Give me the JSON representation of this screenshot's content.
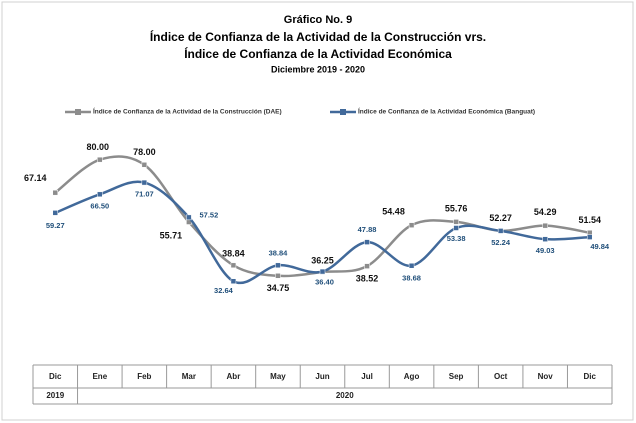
{
  "chart_data": {
    "type": "line",
    "title": [
      "Gráfico No. 9",
      "Índice de Confianza de la Actividad de la Construcción vrs.",
      "Índice de Confianza de la Actividad Económica"
    ],
    "subtitle": "Diciembre 2019 - 2020",
    "categories": [
      "Dic",
      "Ene",
      "Feb",
      "Mar",
      "Abr",
      "May",
      "Jun",
      "Jul",
      "Ago",
      "Sep",
      "Oct",
      "Nov",
      "Dic"
    ],
    "year_labels": [
      "2019",
      "2020"
    ],
    "ylim": [
      0,
      90
    ],
    "series": [
      {
        "name": "Índice de Confianza de la Actividad de la Construcción (DAE)",
        "color": "#8c8c8c",
        "values": [
          67.14,
          80.0,
          78.0,
          55.71,
          38.84,
          34.75,
          36.25,
          38.52,
          54.48,
          55.76,
          52.27,
          54.29,
          51.54
        ],
        "value_labels": [
          "67.14",
          "80.00",
          "78.00",
          "55.71",
          "38.84",
          "34.75",
          "36.25",
          "38.52",
          "54.48",
          "55.76",
          "52.27",
          "54.29",
          "51.54"
        ]
      },
      {
        "name": "Índice de Confianza de la Actividad Económica (Banguat)",
        "color": "#41699a",
        "values": [
          59.27,
          66.5,
          71.07,
          57.52,
          32.64,
          38.84,
          36.4,
          47.88,
          38.68,
          53.38,
          52.24,
          49.03,
          49.84
        ],
        "value_labels": [
          "59.27",
          "66.50",
          "71.07",
          "57.52",
          "32.64",
          "38.84",
          "36.40",
          "47.88",
          "38.68",
          "53.38",
          "52.24",
          "49.03",
          "49.84"
        ]
      }
    ]
  }
}
